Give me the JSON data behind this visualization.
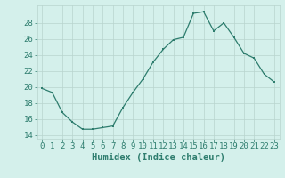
{
  "x": [
    0,
    1,
    2,
    3,
    4,
    5,
    6,
    7,
    8,
    9,
    10,
    11,
    12,
    13,
    14,
    15,
    16,
    17,
    18,
    19,
    20,
    21,
    22,
    23
  ],
  "y": [
    19.8,
    19.3,
    16.8,
    15.6,
    14.7,
    14.7,
    14.9,
    15.1,
    17.4,
    19.3,
    21.0,
    23.1,
    24.7,
    25.9,
    26.2,
    29.2,
    29.4,
    27.0,
    28.0,
    26.2,
    24.2,
    23.6,
    21.6,
    20.6
  ],
  "xlabel": "Humidex (Indice chaleur)",
  "xlim": [
    -0.5,
    23.5
  ],
  "ylim": [
    13.5,
    30.2
  ],
  "yticks": [
    14,
    16,
    18,
    20,
    22,
    24,
    26,
    28
  ],
  "xticks": [
    0,
    1,
    2,
    3,
    4,
    5,
    6,
    7,
    8,
    9,
    10,
    11,
    12,
    13,
    14,
    15,
    16,
    17,
    18,
    19,
    20,
    21,
    22,
    23
  ],
  "line_color": "#2e7d6e",
  "marker_color": "#2e7d6e",
  "bg_color": "#d4f0eb",
  "grid_color": "#b8d4ce",
  "label_fontsize": 7.5,
  "tick_fontsize": 6.5
}
